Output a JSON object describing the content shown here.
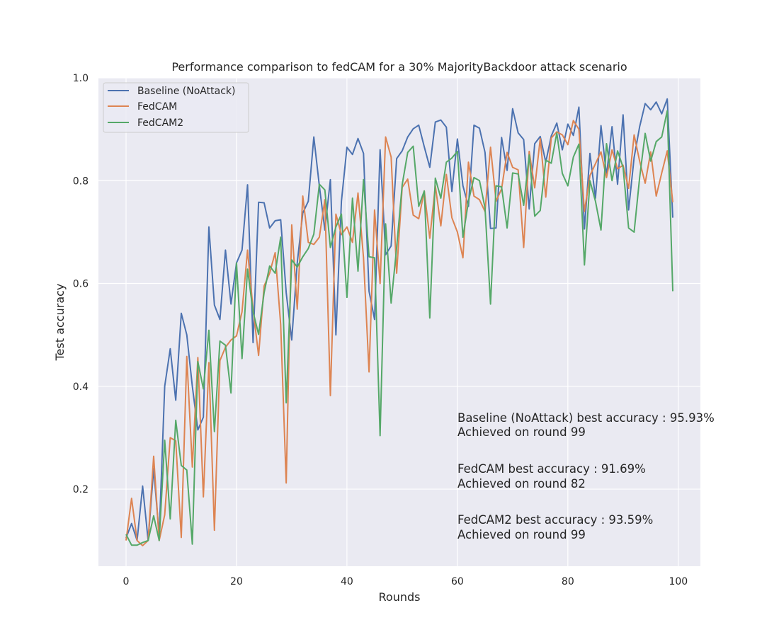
{
  "chart_data": {
    "type": "line",
    "title": "Performance comparison to fedCAM for a 30% MajorityBackdoor attack scenario",
    "xlabel": "Rounds",
    "ylabel": "Test accuracy",
    "xlim": [
      -5,
      104
    ],
    "ylim": [
      0.05,
      1.0
    ],
    "xticks": [
      0,
      20,
      40,
      60,
      80,
      100
    ],
    "yticks": [
      0.2,
      0.4,
      0.6,
      0.8,
      1.0
    ],
    "xtick_labels": [
      "0",
      "20",
      "40",
      "60",
      "80",
      "100"
    ],
    "ytick_labels": [
      "0.2",
      "0.4",
      "0.6",
      "0.8",
      "1.0"
    ],
    "grid": true,
    "legend_position": "upper-left",
    "series": [
      {
        "name": "Baseline (NoAttack)",
        "color": "#4c72b0",
        "values": [
          0.105,
          0.133,
          0.1,
          0.206,
          0.1,
          0.24,
          0.11,
          0.4,
          0.473,
          0.373,
          0.542,
          0.5,
          0.4,
          0.315,
          0.34,
          0.71,
          0.558,
          0.53,
          0.665,
          0.56,
          0.64,
          0.665,
          0.792,
          0.485,
          0.758,
          0.757,
          0.708,
          0.722,
          0.724,
          0.582,
          0.49,
          0.64,
          0.737,
          0.76,
          0.885,
          0.79,
          0.704,
          0.802,
          0.5,
          0.76,
          0.865,
          0.851,
          0.882,
          0.853,
          0.585,
          0.53,
          0.86,
          0.656,
          0.673,
          0.843,
          0.858,
          0.885,
          0.901,
          0.908,
          0.866,
          0.826,
          0.914,
          0.918,
          0.904,
          0.779,
          0.881,
          0.79,
          0.75,
          0.908,
          0.902,
          0.855,
          0.707,
          0.708,
          0.884,
          0.82,
          0.94,
          0.893,
          0.88,
          0.745,
          0.872,
          0.886,
          0.836,
          0.887,
          0.912,
          0.86,
          0.91,
          0.888,
          0.943,
          0.706,
          0.853,
          0.766,
          0.907,
          0.81,
          0.905,
          0.793,
          0.928,
          0.743,
          0.845,
          0.905,
          0.95,
          0.938,
          0.953,
          0.93,
          0.959,
          0.728
        ]
      },
      {
        "name": "FedCAM",
        "color": "#dd8452",
        "values": [
          0.1,
          0.182,
          0.1,
          0.09,
          0.1,
          0.264,
          0.1,
          0.15,
          0.3,
          0.294,
          0.106,
          0.458,
          0.243,
          0.456,
          0.185,
          0.446,
          0.12,
          0.45,
          0.476,
          0.49,
          0.498,
          0.545,
          0.665,
          0.55,
          0.46,
          0.595,
          0.62,
          0.66,
          0.52,
          0.212,
          0.714,
          0.55,
          0.77,
          0.68,
          0.676,
          0.69,
          0.763,
          0.382,
          0.735,
          0.695,
          0.71,
          0.68,
          0.776,
          0.65,
          0.428,
          0.743,
          0.6,
          0.885,
          0.846,
          0.62,
          0.787,
          0.803,
          0.733,
          0.726,
          0.78,
          0.688,
          0.79,
          0.712,
          0.812,
          0.728,
          0.7,
          0.65,
          0.836,
          0.77,
          0.763,
          0.74,
          0.865,
          0.76,
          0.784,
          0.855,
          0.826,
          0.821,
          0.67,
          0.857,
          0.786,
          0.882,
          0.768,
          0.883,
          0.895,
          0.889,
          0.87,
          0.917,
          0.9,
          0.74,
          0.81,
          0.833,
          0.856,
          0.806,
          0.86,
          0.823,
          0.83,
          0.785,
          0.889,
          0.838,
          0.795,
          0.856,
          0.77,
          0.815,
          0.858,
          0.758
        ]
      },
      {
        "name": "FedCAM2",
        "color": "#55a868",
        "values": [
          0.112,
          0.091,
          0.091,
          0.096,
          0.1,
          0.148,
          0.1,
          0.295,
          0.142,
          0.334,
          0.246,
          0.237,
          0.093,
          0.448,
          0.395,
          0.509,
          0.312,
          0.488,
          0.48,
          0.387,
          0.64,
          0.454,
          0.628,
          0.545,
          0.501,
          0.582,
          0.634,
          0.62,
          0.69,
          0.368,
          0.646,
          0.632,
          0.652,
          0.668,
          0.696,
          0.793,
          0.782,
          0.67,
          0.71,
          0.735,
          0.573,
          0.766,
          0.624,
          0.802,
          0.652,
          0.65,
          0.304,
          0.716,
          0.562,
          0.67,
          0.792,
          0.855,
          0.867,
          0.75,
          0.78,
          0.533,
          0.805,
          0.766,
          0.836,
          0.844,
          0.857,
          0.69,
          0.76,
          0.806,
          0.8,
          0.747,
          0.56,
          0.79,
          0.788,
          0.708,
          0.815,
          0.813,
          0.752,
          0.85,
          0.731,
          0.742,
          0.84,
          0.834,
          0.893,
          0.814,
          0.79,
          0.846,
          0.871,
          0.636,
          0.8,
          0.76,
          0.704,
          0.872,
          0.8,
          0.858,
          0.826,
          0.708,
          0.7,
          0.806,
          0.892,
          0.838,
          0.876,
          0.885,
          0.936,
          0.585
        ]
      }
    ],
    "annotations": [
      {
        "line1": "Baseline (NoAttack) best accuracy : 95.93%",
        "line2": "Achieved on round 99"
      },
      {
        "line1": "FedCAM best accuracy : 91.69%",
        "line2": "Achieved on round 82"
      },
      {
        "line1": "FedCAM2 best accuracy : 93.59%",
        "line2": "Achieved on round 99"
      }
    ]
  }
}
